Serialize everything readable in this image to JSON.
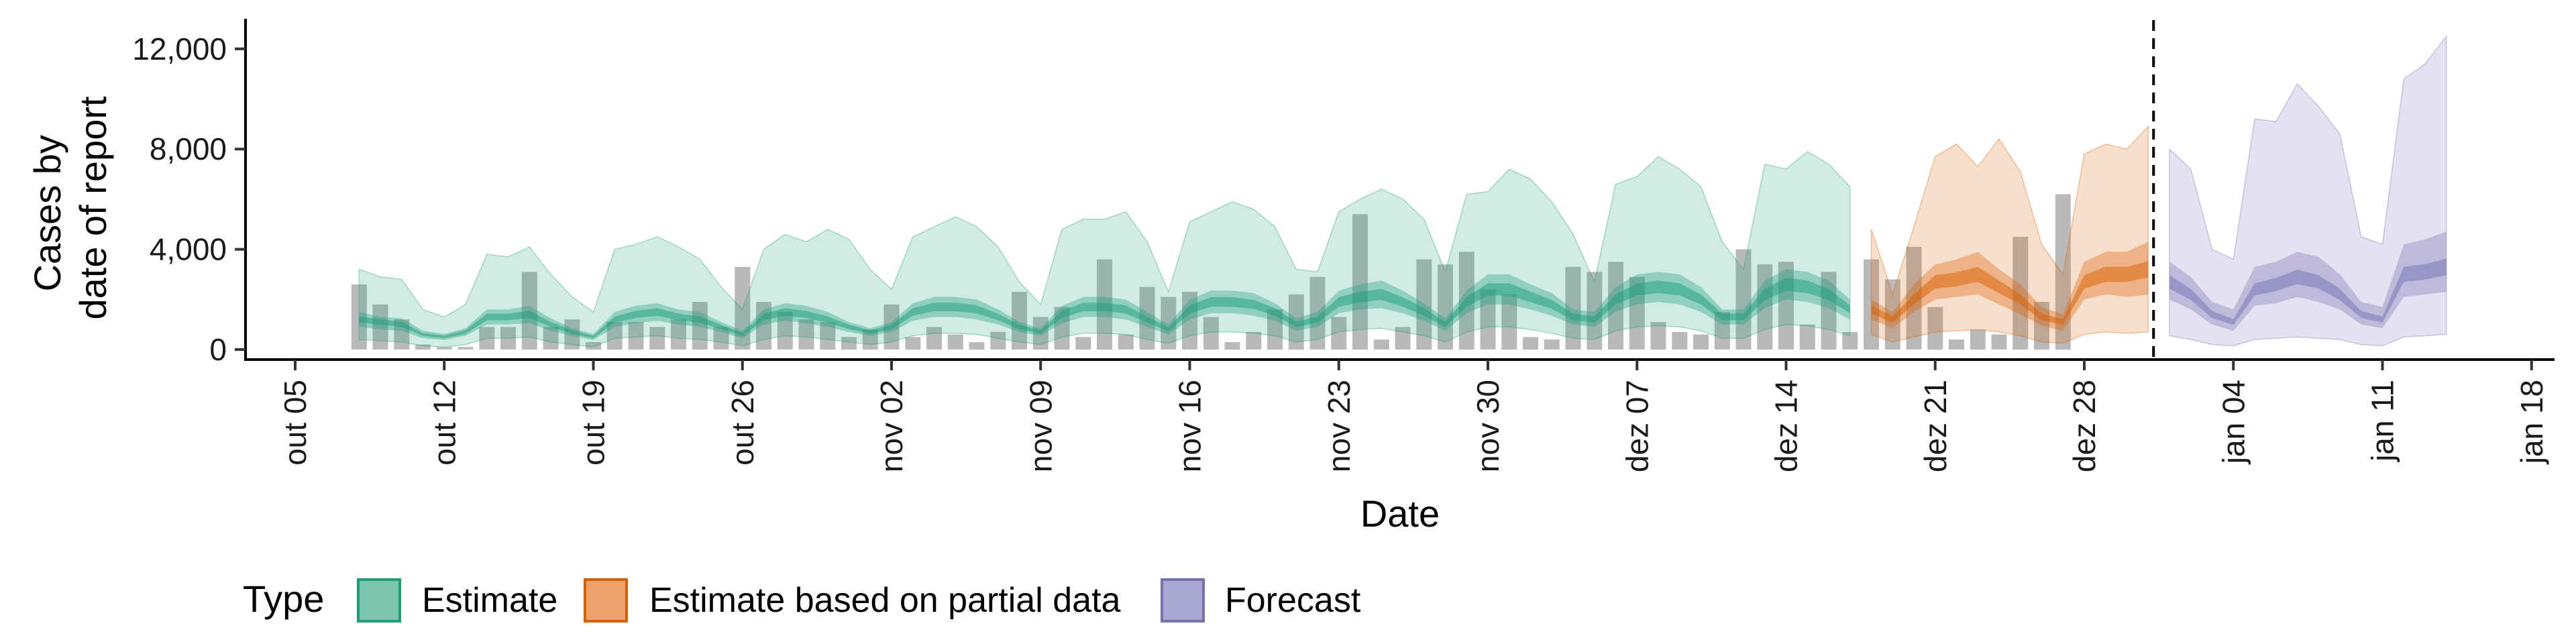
{
  "chart_data": {
    "type": "area",
    "xlabel": "Date",
    "ylabel": [
      "Cases by",
      "date of report"
    ],
    "x_ticks": [
      "out 05",
      "out 12",
      "out 19",
      "out 26",
      "nov 02",
      "nov 09",
      "nov 16",
      "nov 23",
      "nov 30",
      "dez 07",
      "dez 14",
      "dez 21",
      "dez 28",
      "jan 04",
      "jan 11",
      "jan 18"
    ],
    "y_ticks": [
      "0",
      "4,000",
      "8,000",
      "12,000"
    ],
    "ylim": [
      -400,
      13200
    ],
    "x_start": "2020-10-05",
    "forecast_cutoff": "2020-12-31",
    "legend": {
      "title": "Type",
      "placement": "bottom",
      "items": [
        {
          "label": "Estimate",
          "fill": "#7cc6ad",
          "stroke": "#1b9e77"
        },
        {
          "label": "Estimate based on partial data",
          "fill": "#eda06a",
          "stroke": "#d95f02"
        },
        {
          "label": "Forecast",
          "fill": "#a9a6cf",
          "stroke": "#7570b3"
        }
      ]
    },
    "colors": {
      "Estimate": "#1b9e77",
      "Estimate based on partial data": "#d95f02",
      "Forecast": "#7570b3",
      "observed_bars": "#808080"
    },
    "observed_cases": {
      "start_date": "2020-10-08",
      "values": [
        2600,
        1800,
        1200,
        200,
        100,
        100,
        900,
        900,
        3100,
        900,
        1200,
        300,
        1100,
        1100,
        900,
        1200,
        1900,
        900,
        3300,
        1900,
        1500,
        1200,
        1100,
        500,
        800,
        1800,
        500,
        900,
        600,
        300,
        700,
        2300,
        1300,
        1700,
        500,
        3600,
        600,
        2500,
        2100,
        2300,
        1300,
        300,
        700,
        1600,
        2200,
        2900,
        1300,
        5400,
        400,
        900,
        3600,
        3400,
        3900,
        2400,
        2200,
        500,
        400,
        3300,
        3100,
        3500,
        2900,
        1100,
        700,
        600,
        1500,
        4000,
        3400,
        3500,
        1000,
        3100,
        700,
        3600,
        2800,
        4100,
        1700,
        400,
        800,
        600,
        4500,
        1900,
        6200
      ]
    },
    "series": [
      {
        "name": "Estimate",
        "start_date": "2020-10-08",
        "median": [
          1200,
          1100,
          1000,
          600,
          500,
          700,
          1300,
          1300,
          1400,
          1000,
          700,
          500,
          1200,
          1400,
          1500,
          1300,
          1200,
          900,
          600,
          1300,
          1500,
          1400,
          1200,
          900,
          700,
          900,
          1500,
          1700,
          1700,
          1600,
          1300,
          900,
          700,
          1400,
          1700,
          1700,
          1600,
          1200,
          800,
          1600,
          1900,
          1900,
          1800,
          1500,
          1000,
          1200,
          1900,
          2100,
          2200,
          1900,
          1500,
          1000,
          1900,
          2400,
          2400,
          2100,
          1800,
          1300,
          1200,
          2000,
          2400,
          2500,
          2400,
          2000,
          1300,
          1300,
          2200,
          2600,
          2500,
          2200,
          1600
        ],
        "ci50": [
          [
            900,
            1500
          ],
          [
            800,
            1300
          ],
          [
            750,
            1250
          ],
          [
            450,
            750
          ],
          [
            380,
            620
          ],
          [
            550,
            850
          ],
          [
            1000,
            1600
          ],
          [
            1000,
            1600
          ],
          [
            1050,
            1750
          ],
          [
            750,
            1250
          ],
          [
            550,
            850
          ],
          [
            380,
            620
          ],
          [
            900,
            1500
          ],
          [
            1050,
            1750
          ],
          [
            1150,
            1850
          ],
          [
            1000,
            1600
          ],
          [
            900,
            1500
          ],
          [
            700,
            1100
          ],
          [
            450,
            750
          ],
          [
            1000,
            1600
          ],
          [
            1150,
            1850
          ],
          [
            1050,
            1750
          ],
          [
            900,
            1500
          ],
          [
            700,
            1100
          ],
          [
            550,
            850
          ],
          [
            700,
            1100
          ],
          [
            1150,
            1850
          ],
          [
            1300,
            2100
          ],
          [
            1300,
            2100
          ],
          [
            1200,
            2000
          ],
          [
            1000,
            1600
          ],
          [
            700,
            1100
          ],
          [
            550,
            850
          ],
          [
            1050,
            1750
          ],
          [
            1300,
            2100
          ],
          [
            1300,
            2100
          ],
          [
            1200,
            2000
          ],
          [
            900,
            1500
          ],
          [
            600,
            1000
          ],
          [
            1200,
            2000
          ],
          [
            1450,
            2350
          ],
          [
            1450,
            2350
          ],
          [
            1350,
            2250
          ],
          [
            1150,
            1850
          ],
          [
            750,
            1250
          ],
          [
            900,
            1500
          ],
          [
            1450,
            2350
          ],
          [
            1600,
            2600
          ],
          [
            1650,
            2750
          ],
          [
            1450,
            2350
          ],
          [
            1150,
            1850
          ],
          [
            750,
            1250
          ],
          [
            1450,
            2350
          ],
          [
            1800,
            3000
          ],
          [
            1800,
            3000
          ],
          [
            1600,
            2600
          ],
          [
            1350,
            2250
          ],
          [
            1000,
            1600
          ],
          [
            900,
            1500
          ],
          [
            1500,
            2500
          ],
          [
            1800,
            3000
          ],
          [
            1900,
            3100
          ],
          [
            1800,
            3000
          ],
          [
            1500,
            2500
          ],
          [
            1000,
            1600
          ],
          [
            1000,
            1600
          ],
          [
            1650,
            2750
          ],
          [
            2000,
            3200
          ],
          [
            1900,
            3100
          ],
          [
            1650,
            2750
          ],
          [
            1200,
            2000
          ]
        ],
        "ci90": [
          [
            400,
            3200
          ],
          [
            350,
            2900
          ],
          [
            300,
            2800
          ],
          [
            150,
            1600
          ],
          [
            100,
            1300
          ],
          [
            200,
            1800
          ],
          [
            450,
            3800
          ],
          [
            450,
            3700
          ],
          [
            500,
            4100
          ],
          [
            300,
            3000
          ],
          [
            200,
            2100
          ],
          [
            100,
            1500
          ],
          [
            450,
            4000
          ],
          [
            500,
            4200
          ],
          [
            550,
            4500
          ],
          [
            450,
            4100
          ],
          [
            400,
            3600
          ],
          [
            300,
            2500
          ],
          [
            150,
            1600
          ],
          [
            400,
            4000
          ],
          [
            550,
            4600
          ],
          [
            500,
            4300
          ],
          [
            400,
            4800
          ],
          [
            300,
            4400
          ],
          [
            200,
            3200
          ],
          [
            300,
            2400
          ],
          [
            550,
            4500
          ],
          [
            650,
            4900
          ],
          [
            650,
            5300
          ],
          [
            600,
            4900
          ],
          [
            450,
            4100
          ],
          [
            300,
            2700
          ],
          [
            200,
            1800
          ],
          [
            500,
            4800
          ],
          [
            650,
            5200
          ],
          [
            650,
            5200
          ],
          [
            600,
            5500
          ],
          [
            400,
            4300
          ],
          [
            250,
            2300
          ],
          [
            550,
            5100
          ],
          [
            700,
            5500
          ],
          [
            700,
            5900
          ],
          [
            650,
            5600
          ],
          [
            550,
            4900
          ],
          [
            300,
            3200
          ],
          [
            400,
            3100
          ],
          [
            700,
            5500
          ],
          [
            800,
            6000
          ],
          [
            850,
            6400
          ],
          [
            700,
            6000
          ],
          [
            550,
            5200
          ],
          [
            300,
            3100
          ],
          [
            700,
            6200
          ],
          [
            900,
            6300
          ],
          [
            900,
            7200
          ],
          [
            800,
            6800
          ],
          [
            650,
            5900
          ],
          [
            450,
            4600
          ],
          [
            400,
            2700
          ],
          [
            750,
            6600
          ],
          [
            900,
            6900
          ],
          [
            950,
            7700
          ],
          [
            900,
            7200
          ],
          [
            750,
            6500
          ],
          [
            450,
            4300
          ],
          [
            450,
            3200
          ],
          [
            800,
            7400
          ],
          [
            1000,
            7200
          ],
          [
            950,
            7900
          ],
          [
            800,
            7400
          ],
          [
            550,
            6500
          ]
        ]
      },
      {
        "name": "Estimate based on partial data",
        "start_date": "2020-12-18",
        "median": [
          1600,
          1200,
          2000,
          2700,
          2800,
          3000,
          2500,
          2000,
          1300,
          1100,
          2700,
          3000,
          3000,
          3200
        ],
        "ci50": [
          [
            1200,
            2000
          ],
          [
            850,
            1500
          ],
          [
            1500,
            2600
          ],
          [
            2000,
            3400
          ],
          [
            2100,
            3600
          ],
          [
            2200,
            3900
          ],
          [
            1800,
            3200
          ],
          [
            1400,
            2600
          ],
          [
            950,
            1700
          ],
          [
            750,
            1400
          ],
          [
            2000,
            3500
          ],
          [
            2200,
            3900
          ],
          [
            2100,
            3900
          ],
          [
            2200,
            4300
          ]
        ],
        "ci90": [
          [
            600,
            4800
          ],
          [
            300,
            2200
          ],
          [
            500,
            4900
          ],
          [
            700,
            7700
          ],
          [
            750,
            8200
          ],
          [
            800,
            7300
          ],
          [
            700,
            8400
          ],
          [
            550,
            7100
          ],
          [
            300,
            4200
          ],
          [
            250,
            3000
          ],
          [
            600,
            7800
          ],
          [
            700,
            8200
          ],
          [
            650,
            8000
          ],
          [
            700,
            8900
          ]
        ]
      },
      {
        "name": "Forecast",
        "start_date": "2021-01-01",
        "median": [
          2700,
          2200,
          1400,
          1100,
          2400,
          2600,
          2900,
          2700,
          2200,
          1400,
          1200,
          3000,
          3100,
          3300
        ],
        "ci50": [
          [
            2000,
            3500
          ],
          [
            1600,
            2900
          ],
          [
            1000,
            1900
          ],
          [
            750,
            1600
          ],
          [
            1750,
            3300
          ],
          [
            1850,
            3500
          ],
          [
            2100,
            3900
          ],
          [
            1900,
            3700
          ],
          [
            1600,
            3000
          ],
          [
            1000,
            1900
          ],
          [
            850,
            1700
          ],
          [
            2100,
            4200
          ],
          [
            2200,
            4400
          ],
          [
            2300,
            4700
          ]
        ],
        "ci90": [
          [
            550,
            8000
          ],
          [
            400,
            7200
          ],
          [
            200,
            4000
          ],
          [
            150,
            3600
          ],
          [
            400,
            9200
          ],
          [
            450,
            9100
          ],
          [
            500,
            10600
          ],
          [
            450,
            9700
          ],
          [
            400,
            8600
          ],
          [
            200,
            4500
          ],
          [
            150,
            4200
          ],
          [
            500,
            10800
          ],
          [
            550,
            11400
          ],
          [
            600,
            12500
          ]
        ]
      }
    ]
  }
}
